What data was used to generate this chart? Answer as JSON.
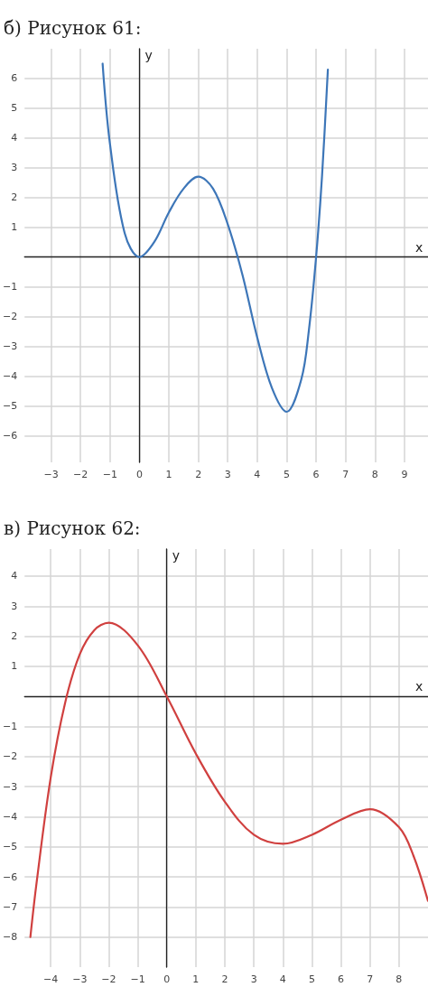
{
  "chart_data": [
    {
      "type": "line",
      "title": "б) Рисунок 61:",
      "xlabel": "x",
      "ylabel": "y",
      "xlim": [
        -3.9,
        9.8
      ],
      "ylim": [
        -6.9,
        7.0
      ],
      "xticks": [
        -3,
        -2,
        -1,
        0,
        1,
        2,
        3,
        4,
        5,
        6,
        7,
        8,
        9
      ],
      "yticks": [
        -6,
        -5,
        -4,
        -3,
        -2,
        -1,
        1,
        2,
        3,
        4,
        5,
        6
      ],
      "grid": true,
      "marker": "none",
      "line_style": "solid",
      "series": [
        {
          "color": "#3d76b8",
          "x": [
            -1.25,
            -1,
            -0.5,
            0,
            0.5,
            1,
            1.5,
            2,
            2.5,
            3,
            3.5,
            4,
            4.5,
            5,
            5.5,
            5.75,
            6,
            6.2,
            6.4
          ],
          "values": [
            6.5,
            3.8,
            0.8,
            0,
            0.5,
            1.5,
            2.3,
            2.7,
            2.3,
            1.1,
            -0.6,
            -2.7,
            -4.4,
            -5.2,
            -4.1,
            -2.5,
            0,
            2.7,
            6.3
          ]
        }
      ]
    },
    {
      "type": "line",
      "title": "в) Рисунок 62:",
      "xlabel": "x",
      "ylabel": "y",
      "xlim": [
        -4.9,
        9.0
      ],
      "ylim": [
        -9.0,
        4.9
      ],
      "xticks": [
        -4,
        -3,
        -2,
        -1,
        0,
        1,
        2,
        3,
        4,
        5,
        6,
        7,
        8
      ],
      "yticks": [
        -8,
        -7,
        -6,
        -5,
        -4,
        -3,
        -2,
        -1,
        1,
        2,
        3,
        4
      ],
      "grid": true,
      "marker": "none",
      "line_style": "solid",
      "series": [
        {
          "color": "#d0403f",
          "x": [
            -4.7,
            -4.5,
            -4,
            -3.5,
            -3,
            -2.5,
            -2,
            -1,
            0,
            1,
            2,
            3,
            4,
            5,
            6,
            7,
            8,
            8.5,
            9
          ],
          "values": [
            -8.0,
            -6.3,
            -2.7,
            -0.2,
            1.4,
            2.2,
            2.45,
            1.7,
            0,
            -1.9,
            -3.5,
            -4.6,
            -4.9,
            -4.6,
            -4.1,
            -3.75,
            -4.35,
            -5.3,
            -6.8
          ]
        }
      ]
    }
  ]
}
